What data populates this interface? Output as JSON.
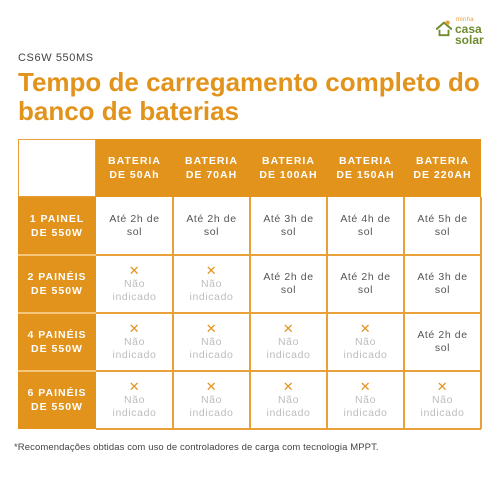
{
  "logo": {
    "small_text": "minha",
    "casa": "casa",
    "solar": "solar",
    "icon": "house-roof-icon"
  },
  "model": "CS6W 550MS",
  "title": "Tempo de carregamento completo do banco de baterias",
  "table": {
    "columns": [
      {
        "line1": "BATERIA",
        "line2": "DE 50Ah"
      },
      {
        "line1": "BATERIA",
        "line2": "DE 70AH"
      },
      {
        "line1": "BATERIA",
        "line2": "DE 100AH"
      },
      {
        "line1": "BATERIA",
        "line2": "DE 150AH"
      },
      {
        "line1": "BATERIA",
        "line2": "DE 220AH"
      }
    ],
    "rows": [
      {
        "line1": "1 PAINEL",
        "line2": "DE 550W",
        "cells": [
          {
            "na": false,
            "line1": "Até 2h de",
            "line2": "sol"
          },
          {
            "na": false,
            "line1": "Até 2h de",
            "line2": "sol"
          },
          {
            "na": false,
            "line1": "Até 3h de",
            "line2": "sol"
          },
          {
            "na": false,
            "line1": "Até 4h de",
            "line2": "sol"
          },
          {
            "na": false,
            "line1": "Até 5h de",
            "line2": "sol"
          }
        ]
      },
      {
        "line1": "2 PAINÉIS",
        "line2": "DE 550W",
        "cells": [
          {
            "na": true,
            "line1": "Não",
            "line2": "indicado"
          },
          {
            "na": true,
            "line1": "Não",
            "line2": "indicado"
          },
          {
            "na": false,
            "line1": "Até 2h de",
            "line2": "sol"
          },
          {
            "na": false,
            "line1": "Até 2h de",
            "line2": "sol"
          },
          {
            "na": false,
            "line1": "Até 3h de",
            "line2": "sol"
          }
        ]
      },
      {
        "line1": "4 PAINÉIS",
        "line2": "DE 550W",
        "cells": [
          {
            "na": true,
            "line1": "Não",
            "line2": "indicado"
          },
          {
            "na": true,
            "line1": "Não",
            "line2": "indicado"
          },
          {
            "na": true,
            "line1": "Não",
            "line2": "indicado"
          },
          {
            "na": true,
            "line1": "Não",
            "line2": "indicado"
          },
          {
            "na": false,
            "line1": "Até 2h de",
            "line2": "sol"
          }
        ]
      },
      {
        "line1": "6 PAINÉIS",
        "line2": "DE 550W",
        "cells": [
          {
            "na": true,
            "line1": "Não",
            "line2": "indicado"
          },
          {
            "na": true,
            "line1": "Não",
            "line2": "indicado"
          },
          {
            "na": true,
            "line1": "Não",
            "line2": "indicado"
          },
          {
            "na": true,
            "line1": "Não",
            "line2": "indicado"
          },
          {
            "na": true,
            "line1": "Não",
            "line2": "indicado"
          }
        ]
      }
    ],
    "na_icon": "x-mark-icon",
    "na_icon_glyph": "✕"
  },
  "footnote": "*Recomendações obtidas com uso de controladores de carga com tecnologia MPPT.",
  "colors": {
    "accent": "#e2931c",
    "grid": "#e8a13a",
    "brand_green": "#6f8b2e",
    "muted_text": "#bdbdbd"
  }
}
